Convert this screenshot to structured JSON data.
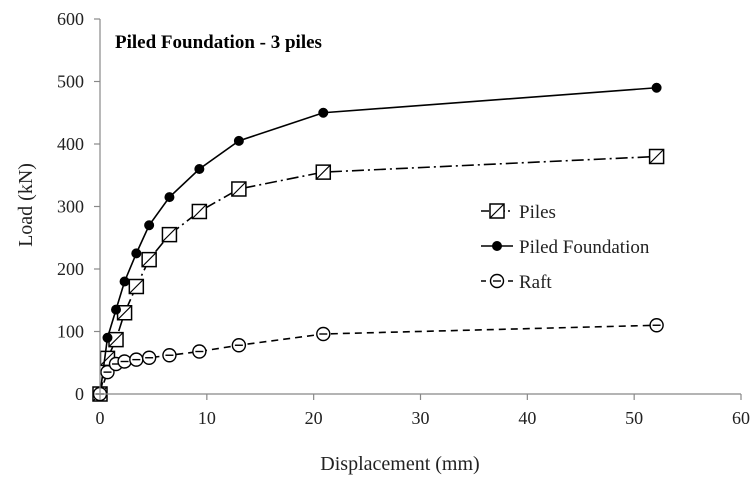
{
  "chart_data": {
    "type": "line",
    "title": "Piled Foundation - 3 piles",
    "xlabel": "Displacement (mm)",
    "ylabel": "Load (kN)",
    "xlim": [
      0,
      60
    ],
    "ylim": [
      0,
      600
    ],
    "xticks": [
      0,
      10,
      20,
      30,
      40,
      50,
      60
    ],
    "yticks": [
      0,
      100,
      200,
      300,
      400,
      500,
      600
    ],
    "grid": false,
    "legend_position": "right",
    "series": [
      {
        "name": "Piles",
        "marker": "square-open",
        "line": "dash-dot",
        "color": "#000000",
        "x": [
          0,
          0.7,
          1.5,
          2.3,
          3.4,
          4.6,
          6.5,
          9.3,
          13.0,
          20.9,
          52.1
        ],
        "y": [
          0,
          57,
          87,
          130,
          172,
          215,
          255,
          292,
          328,
          355,
          380
        ]
      },
      {
        "name": "Piled Foundation",
        "marker": "circle-filled",
        "line": "solid",
        "color": "#000000",
        "x": [
          0,
          0.7,
          1.5,
          2.3,
          3.4,
          4.6,
          6.5,
          9.3,
          13.0,
          20.9,
          52.1
        ],
        "y": [
          0,
          90,
          135,
          180,
          225,
          270,
          315,
          360,
          405,
          450,
          490
        ]
      },
      {
        "name": "Raft",
        "marker": "circle-open-dash",
        "line": "dashed",
        "color": "#000000",
        "x": [
          0,
          0.7,
          1.5,
          2.3,
          3.4,
          4.6,
          6.5,
          9.3,
          13.0,
          20.9,
          52.1
        ],
        "y": [
          0,
          35,
          48,
          52,
          55,
          58,
          62,
          68,
          78,
          96,
          110
        ]
      }
    ]
  }
}
